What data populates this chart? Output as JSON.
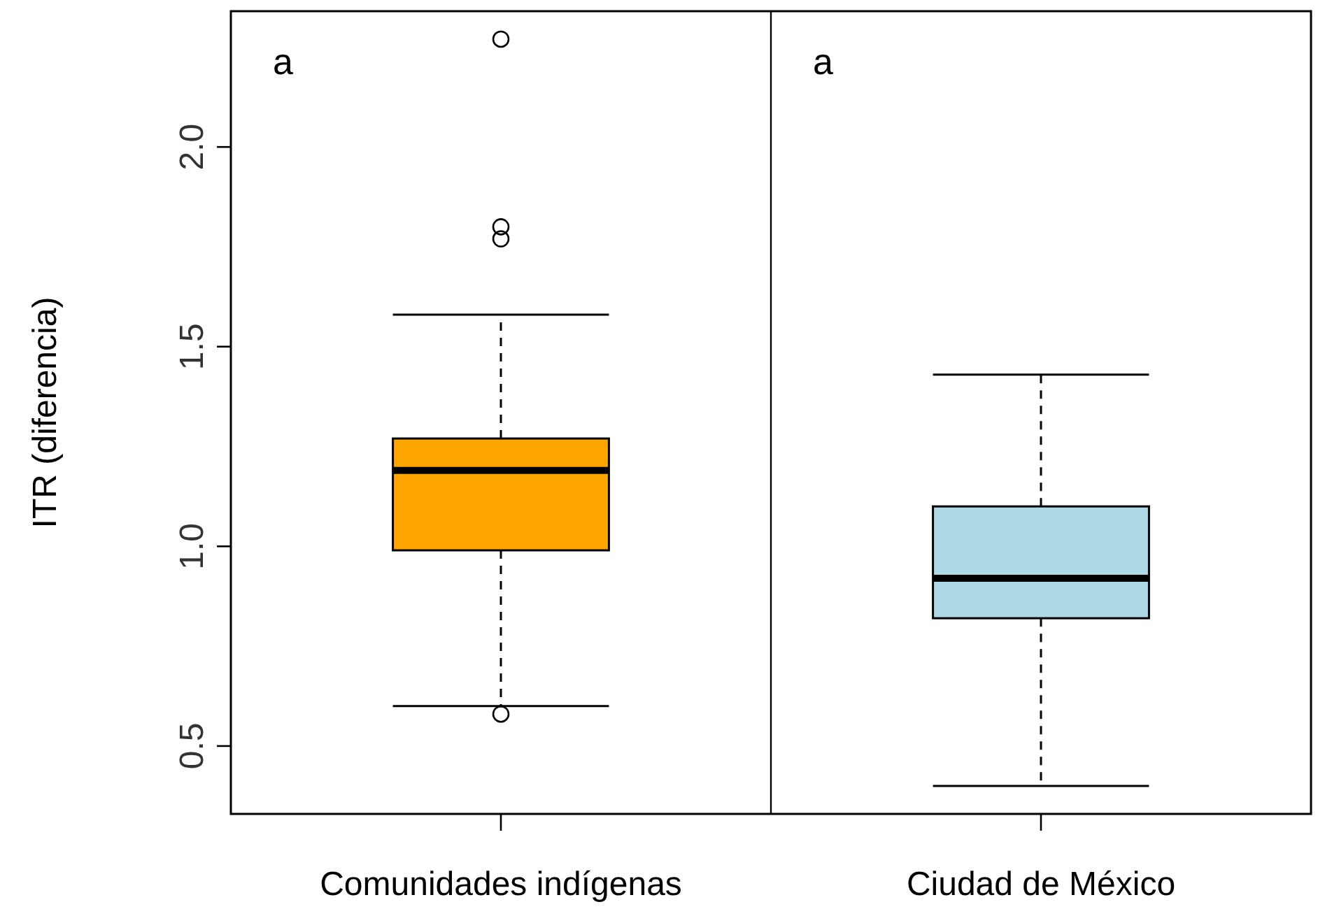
{
  "chart_data": {
    "type": "box",
    "ylabel": "ITR (diferencia)",
    "categories": [
      "Comunidades indígenas",
      "Ciudad de México"
    ],
    "series": [
      {
        "color": "#ffa500",
        "boxes": [
          {
            "low": 0.6,
            "q1": 0.99,
            "median": 1.19,
            "q3": 1.27,
            "high": 1.58,
            "outliers": [
              0.58,
              1.77,
              1.8,
              2.27
            ]
          },
          null
        ]
      },
      {
        "color": "#add8e6",
        "boxes": [
          null,
          {
            "low": 0.4,
            "q1": 0.82,
            "median": 0.92,
            "q3": 1.1,
            "high": 1.43
          }
        ]
      }
    ],
    "ylim": [
      0.33,
      2.34
    ],
    "yticks": [
      {
        "value": 0.5,
        "label": "0.5"
      },
      {
        "value": 1,
        "label": "1.0"
      },
      {
        "value": 1.5,
        "label": "1.5"
      },
      {
        "value": 2,
        "label": "2.0"
      }
    ],
    "annotations": [
      "a",
      "a"
    ]
  }
}
